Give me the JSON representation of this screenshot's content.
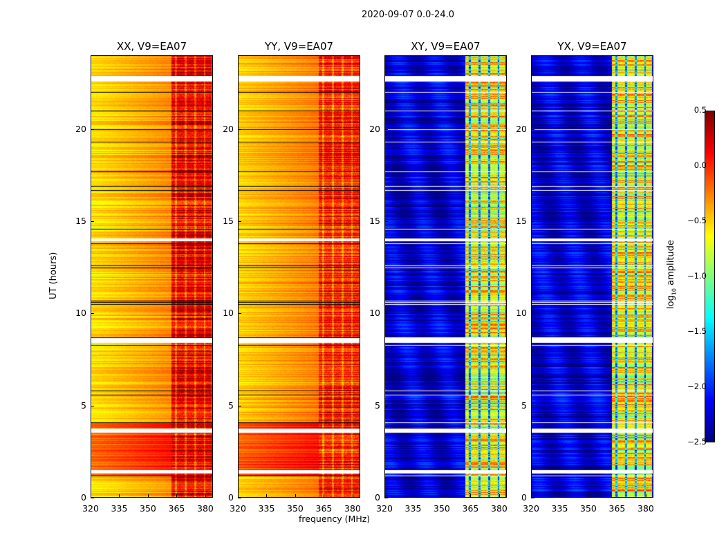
{
  "suptitle": "2020-09-07 0.0-24.0",
  "chart_data": {
    "type": "heatmap",
    "title": "2020-09-07 0.0-24.0",
    "xlabel": "frequency (MHz)",
    "ylabel": "UT (hours)",
    "xlim": [
      320,
      384
    ],
    "ylim": [
      0,
      24
    ],
    "xticks": [
      320,
      335,
      350,
      365,
      380
    ],
    "yticks": [
      0,
      5,
      10,
      15,
      20
    ],
    "colorbar": {
      "label_prefix": "log",
      "label_sub": "10",
      "label_suffix": " amplitude",
      "clim": [
        -2.5,
        0.5
      ],
      "ticks": [
        "0.5",
        "0.0",
        "−0.5",
        "−1.0",
        "−1.5",
        "−2.0",
        "−2.5"
      ],
      "tick_values": [
        0.5,
        0.0,
        -0.5,
        -1.0,
        -1.5,
        -2.0,
        -2.5
      ],
      "colormap": "jet"
    },
    "flagged_rows_hours": [
      [
        22.6,
        22.9
      ],
      [
        13.95,
        14.1
      ],
      [
        8.4,
        8.7
      ],
      [
        3.55,
        3.75
      ],
      [
        1.35,
        1.5
      ]
    ],
    "dark_rows_hours": [
      22.0,
      21.0,
      20.0,
      19.3,
      17.7,
      16.9,
      16.7,
      14.6,
      13.8,
      12.6,
      12.5,
      10.7,
      10.6,
      10.5,
      8.7,
      8.3,
      5.8,
      5.6,
      4.1,
      1.2
    ],
    "rfi_band_mhz": [
      362,
      383
    ],
    "band_gaps_mhz": [
      364.5,
      369.5,
      374.5,
      379.5
    ],
    "panels": [
      {
        "title": "XX, V9=EA07",
        "base_level": -0.55,
        "band_level": 0.15,
        "show_ylabels": true
      },
      {
        "title": "YY, V9=EA07",
        "base_level": -0.5,
        "band_level": 0.05,
        "show_ylabels": true
      },
      {
        "title": "XY, V9=EA07",
        "base_level": -2.25,
        "band_level": -0.6,
        "show_ylabels": true
      },
      {
        "title": "YX, V9=EA07",
        "base_level": -2.25,
        "band_level": -0.6,
        "show_ylabels": true
      }
    ]
  }
}
